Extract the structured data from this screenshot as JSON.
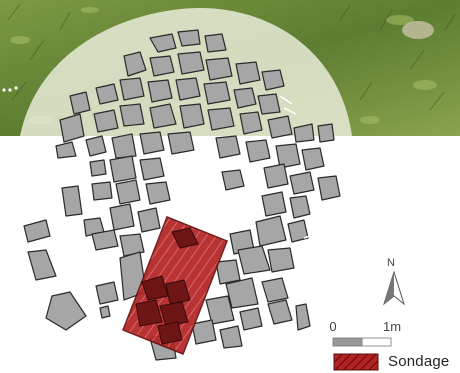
{
  "scale": {
    "start_label": "0",
    "end_label": "1m"
  },
  "north_arrow": {
    "label": "N"
  },
  "legend": {
    "sondage_label": "Sondage",
    "sondage_color": "#b32323"
  },
  "colors": {
    "stone_fill": "#a6a6a6",
    "stone_outline": "#2a2a2a",
    "photo_grass": "#6f8f3e"
  }
}
